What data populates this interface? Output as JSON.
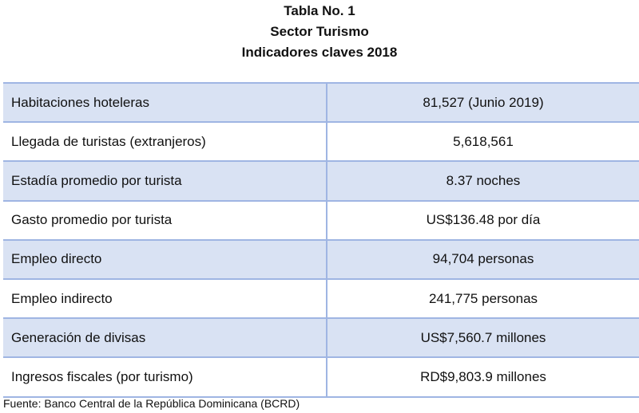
{
  "title": [
    "Tabla No. 1",
    "Sector Turismo",
    "Indicadores claves 2018"
  ],
  "rows": [
    {
      "label": "Habitaciones hoteleras",
      "value": "81,527 (Junio 2019)"
    },
    {
      "label": "Llegada de turistas (extranjeros)",
      "value": "5,618,561"
    },
    {
      "label": "Estadía promedio por turista",
      "value": "8.37 noches"
    },
    {
      "label": "Gasto promedio por turista",
      "value": "US$136.48 por día"
    },
    {
      "label": "Empleo directo",
      "value": "94,704 personas"
    },
    {
      "label": "Empleo indirecto",
      "value": "241,775 personas"
    },
    {
      "label": "Generación de divisas",
      "value": "US$7,560.7 millones"
    },
    {
      "label": "Ingresos fiscales (por turismo)",
      "value": "RD$9,803.9 millones"
    }
  ],
  "source": "Fuente: Banco Central de la República Dominicana (BCRD)",
  "colors": {
    "band": "#d9e2f3",
    "border": "#9fb5e3"
  }
}
